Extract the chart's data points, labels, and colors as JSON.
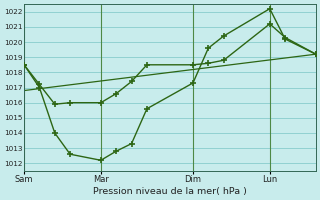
{
  "xlabel": "Pression niveau de la mer( hPa )",
  "bg_color": "#c8ecec",
  "grid_color": "#88cccc",
  "line_color": "#2d6614",
  "vline_color": "#3d7722",
  "ylim": [
    1011.5,
    1022.5
  ],
  "ytick_vals": [
    1012,
    1013,
    1014,
    1015,
    1016,
    1017,
    1018,
    1019,
    1020,
    1021,
    1022
  ],
  "xtick_labels": [
    "Sam",
    "Mar",
    "Dim",
    "Lun"
  ],
  "xtick_positions": [
    0,
    5,
    11,
    16
  ],
  "xlim": [
    0,
    19
  ],
  "line1_x": [
    0,
    1,
    2,
    3,
    5,
    6,
    7,
    8,
    11,
    12,
    13,
    16,
    17,
    19
  ],
  "line1_y": [
    1018.5,
    1017.2,
    1015.9,
    1016.0,
    1016.0,
    1016.6,
    1017.4,
    1018.5,
    1018.5,
    1018.6,
    1018.8,
    1021.2,
    1020.3,
    1019.2
  ],
  "line2_x": [
    0,
    1,
    2,
    3,
    5,
    6,
    7,
    8,
    11,
    12,
    13,
    16,
    17,
    19
  ],
  "line2_y": [
    1018.5,
    1017.0,
    1014.0,
    1012.6,
    1012.2,
    1012.8,
    1013.3,
    1015.6,
    1017.3,
    1019.6,
    1020.4,
    1022.2,
    1020.2,
    1019.2
  ],
  "line3_x": [
    0,
    19
  ],
  "line3_y": [
    1016.8,
    1019.2
  ]
}
